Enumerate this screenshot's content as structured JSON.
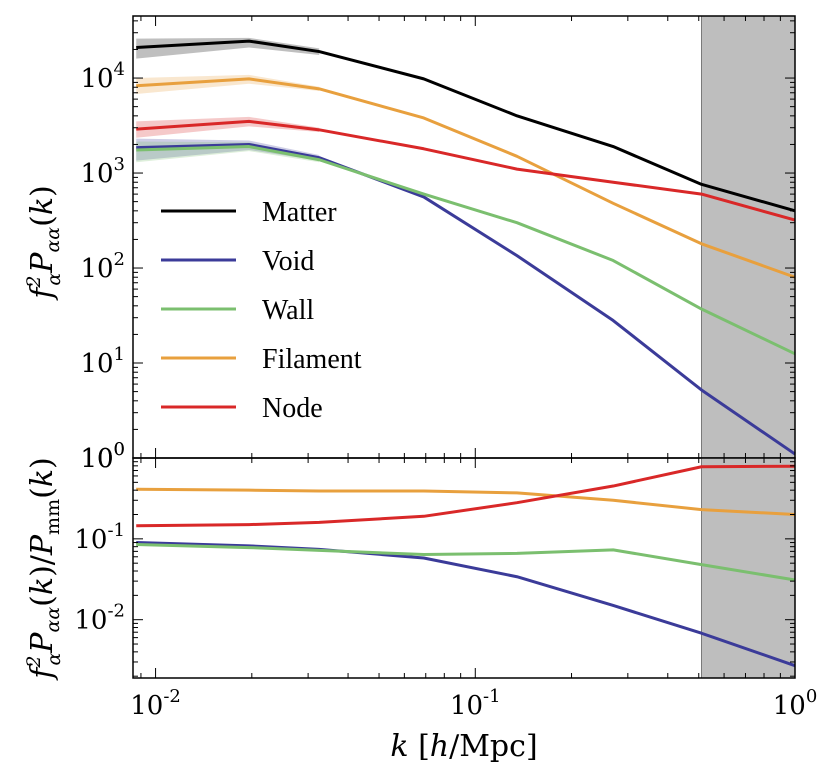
{
  "chart_data": [
    {
      "type": "line",
      "panel": "top",
      "ylabel": "f_α² P_αα(k)",
      "xscale": "log",
      "yscale": "log",
      "xlim": [
        0.0085,
        1.0
      ],
      "ylim": [
        1,
        45000
      ],
      "x": [
        0.0087,
        0.0196,
        0.0325,
        0.069,
        0.135,
        0.27,
        0.51,
        1.0
      ],
      "series": [
        {
          "name": "Matter",
          "color": "#000000",
          "values": [
            21000,
            24500,
            19000,
            9800,
            4000,
            1900,
            760,
            400
          ],
          "band_low": [
            16000,
            21000,
            17500
          ],
          "band_high": [
            26000,
            26500,
            20500
          ]
        },
        {
          "name": "Void",
          "color": "#3b3b99",
          "values": [
            1850,
            2000,
            1450,
            560,
            135,
            28,
            5.2,
            1.1
          ],
          "band_low": [
            1350,
            1750,
            1350
          ],
          "band_high": [
            2300,
            2200,
            1550
          ]
        },
        {
          "name": "Wall",
          "color": "#7bbf6f",
          "values": [
            1750,
            1900,
            1380,
            600,
            300,
            120,
            37,
            12.5
          ],
          "band_low": [
            1300,
            1700,
            1300
          ],
          "band_high": [
            2150,
            2100,
            1460
          ]
        },
        {
          "name": "Filament",
          "color": "#e8a03e",
          "values": [
            8300,
            9800,
            7700,
            3800,
            1500,
            480,
            180,
            80
          ],
          "band_low": [
            6800,
            8700,
            7300
          ],
          "band_high": [
            10000,
            10800,
            8100
          ]
        },
        {
          "name": "Node",
          "color": "#d92828",
          "values": [
            2900,
            3500,
            2850,
            1800,
            1100,
            800,
            600,
            320
          ],
          "band_low": [
            2350,
            3100,
            2700
          ],
          "band_high": [
            3500,
            3900,
            3000
          ]
        }
      ],
      "yticks": [
        {
          "value": 1,
          "mantissa": "10",
          "exp": "0"
        },
        {
          "value": 10,
          "mantissa": "10",
          "exp": "1"
        },
        {
          "value": 100,
          "mantissa": "10",
          "exp": "2"
        },
        {
          "value": 1000,
          "mantissa": "10",
          "exp": "3"
        },
        {
          "value": 10000,
          "mantissa": "10",
          "exp": "4"
        }
      ],
      "shaded_region": {
        "x": [
          0.51,
          1.0
        ],
        "color": "#bebebe"
      },
      "legend": {
        "position": "center-left",
        "items": [
          "Matter",
          "Void",
          "Wall",
          "Filament",
          "Node"
        ]
      }
    },
    {
      "type": "line",
      "panel": "bottom",
      "xlabel": "k [h/Mpc]",
      "ylabel": "f_α² P_αα(k) / P_mm(k)",
      "xscale": "log",
      "yscale": "log",
      "xlim": [
        0.0085,
        1.0
      ],
      "ylim": [
        0.0019,
        1.0
      ],
      "x": [
        0.0087,
        0.0196,
        0.0325,
        0.069,
        0.135,
        0.27,
        0.51,
        1.0
      ],
      "series": [
        {
          "name": "Void",
          "color": "#3b3b99",
          "values": [
            0.09,
            0.082,
            0.074,
            0.058,
            0.034,
            0.015,
            0.0068,
            0.0027
          ]
        },
        {
          "name": "Wall",
          "color": "#7bbf6f",
          "values": [
            0.085,
            0.078,
            0.072,
            0.064,
            0.066,
            0.073,
            0.048,
            0.031
          ]
        },
        {
          "name": "Filament",
          "color": "#e8a03e",
          "values": [
            0.41,
            0.4,
            0.39,
            0.39,
            0.37,
            0.3,
            0.23,
            0.2
          ]
        },
        {
          "name": "Node",
          "color": "#d92828",
          "values": [
            0.145,
            0.15,
            0.16,
            0.19,
            0.28,
            0.45,
            0.78,
            0.79
          ]
        }
      ],
      "yticks": [
        {
          "value": 1,
          "mantissa": "10",
          "exp": "0"
        },
        {
          "value": 0.1,
          "mantissa": "10",
          "exp": "-1"
        },
        {
          "value": 0.01,
          "mantissa": "10",
          "exp": "-2"
        }
      ],
      "xticks": [
        {
          "value": 0.01,
          "mantissa": "10",
          "exp": "-2"
        },
        {
          "value": 0.1,
          "mantissa": "10",
          "exp": "-1"
        },
        {
          "value": 1,
          "mantissa": "10",
          "exp": "0"
        }
      ],
      "shaded_region": {
        "x": [
          0.51,
          1.0
        ],
        "color": "#bebebe"
      }
    }
  ]
}
